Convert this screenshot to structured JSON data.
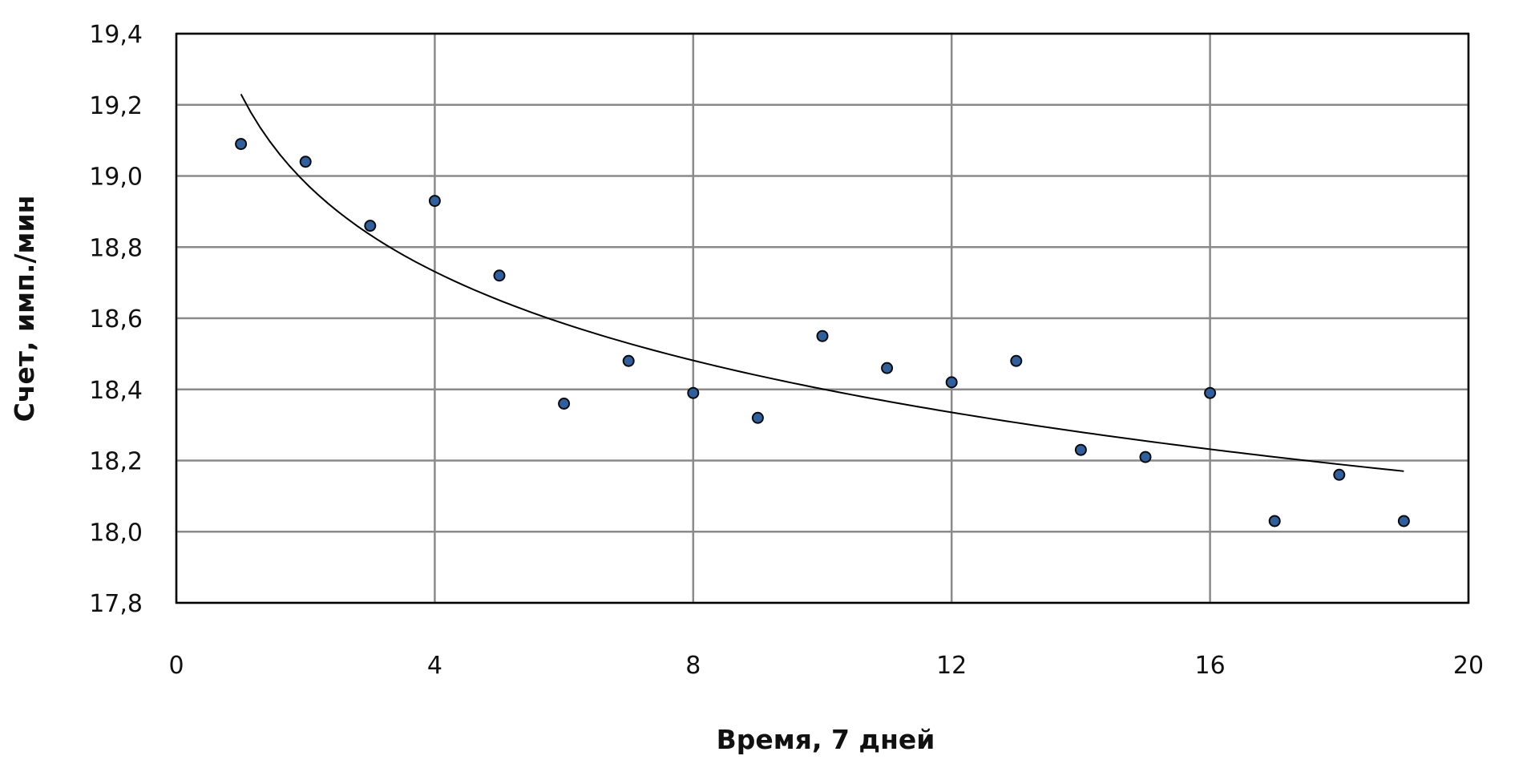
{
  "chart_data": {
    "type": "scatter",
    "title": "",
    "xlabel": "Время, 7 дней",
    "ylabel": "Счет, имп./мин",
    "xlim": [
      0,
      20
    ],
    "ylim": [
      17.8,
      19.4
    ],
    "x_ticks": [
      0,
      4,
      8,
      12,
      16,
      20
    ],
    "x_tick_labels": [
      "0",
      "4",
      "8",
      "12",
      "16",
      "20"
    ],
    "y_ticks": [
      17.8,
      18.0,
      18.2,
      18.4,
      18.6,
      18.8,
      19.0,
      19.2,
      19.4
    ],
    "y_tick_labels": [
      "17,8",
      "18,0",
      "18,2",
      "18,4",
      "18,6",
      "18,8",
      "19,0",
      "19,2",
      "19,4"
    ],
    "x_gridlines": [
      0,
      4,
      8,
      12,
      16,
      20
    ],
    "y_gridlines": [
      17.8,
      18.0,
      18.2,
      18.4,
      18.6,
      18.8,
      19.0,
      19.2,
      19.4
    ],
    "grid": true,
    "legend": "none",
    "series": [
      {
        "x": [
          1,
          2,
          3,
          4,
          5,
          6,
          7,
          8,
          9,
          10,
          11,
          12,
          13,
          14,
          15,
          16,
          17,
          18,
          19
        ],
        "y": [
          19.09,
          19.04,
          18.86,
          18.93,
          18.72,
          18.36,
          18.48,
          18.39,
          18.32,
          18.55,
          18.46,
          18.42,
          18.48,
          18.23,
          18.21,
          18.39,
          18.03,
          18.16,
          18.03
        ],
        "marker_color": "#2e5f9e",
        "marker_edge": "#0a0a0a"
      }
    ],
    "trendline": {
      "type": "logarithmic",
      "x_start": 1,
      "x_end": 19,
      "y_at_x1": 19.23,
      "y_at_x19": 18.17,
      "color": "#000000"
    },
    "colors": {
      "grid": "#8a8a8a",
      "frame": "#000000",
      "background": "#ffffff"
    }
  }
}
